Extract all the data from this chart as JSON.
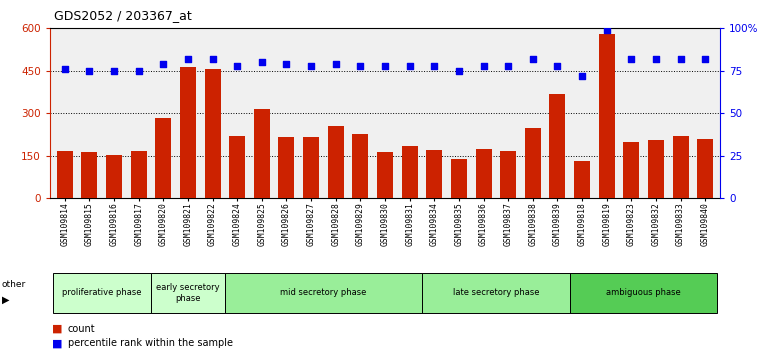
{
  "title": "GDS2052 / 203367_at",
  "samples": [
    "GSM109814",
    "GSM109815",
    "GSM109816",
    "GSM109817",
    "GSM109820",
    "GSM109821",
    "GSM109822",
    "GSM109824",
    "GSM109825",
    "GSM109826",
    "GSM109827",
    "GSM109828",
    "GSM109829",
    "GSM109830",
    "GSM109831",
    "GSM109834",
    "GSM109835",
    "GSM109836",
    "GSM109837",
    "GSM109838",
    "GSM109839",
    "GSM109818",
    "GSM109819",
    "GSM109823",
    "GSM109832",
    "GSM109833",
    "GSM109840"
  ],
  "counts": [
    168,
    163,
    152,
    168,
    285,
    462,
    455,
    220,
    315,
    215,
    215,
    255,
    228,
    163,
    183,
    172,
    140,
    173,
    168,
    248,
    368,
    133,
    580,
    197,
    205,
    220,
    208
  ],
  "percentile": [
    76,
    75,
    75,
    75,
    79,
    82,
    82,
    78,
    80,
    79,
    78,
    79,
    78,
    78,
    78,
    78,
    75,
    78,
    78,
    82,
    78,
    72,
    99,
    82,
    82,
    82,
    82
  ],
  "bar_color": "#cc2200",
  "dot_color": "#0000ee",
  "ylim_left": [
    0,
    600
  ],
  "ylim_right": [
    0,
    100
  ],
  "yticks_left": [
    0,
    150,
    300,
    450,
    600
  ],
  "yticks_right": [
    0,
    25,
    50,
    75,
    100
  ],
  "ytick_labels_left": [
    "0",
    "150",
    "300",
    "450",
    "600"
  ],
  "ytick_labels_right": [
    "0",
    "25",
    "50",
    "75",
    "100%"
  ],
  "group_labels": [
    "proliferative phase",
    "early secretory\nphase",
    "mid secretory phase",
    "late secretory phase",
    "ambiguous phase"
  ],
  "group_colors": [
    "#ccffcc",
    "#ccffcc",
    "#99ee99",
    "#99ee99",
    "#55cc55"
  ],
  "group_ranges": [
    [
      0,
      4
    ],
    [
      4,
      7
    ],
    [
      7,
      15
    ],
    [
      15,
      21
    ],
    [
      21,
      27
    ]
  ]
}
